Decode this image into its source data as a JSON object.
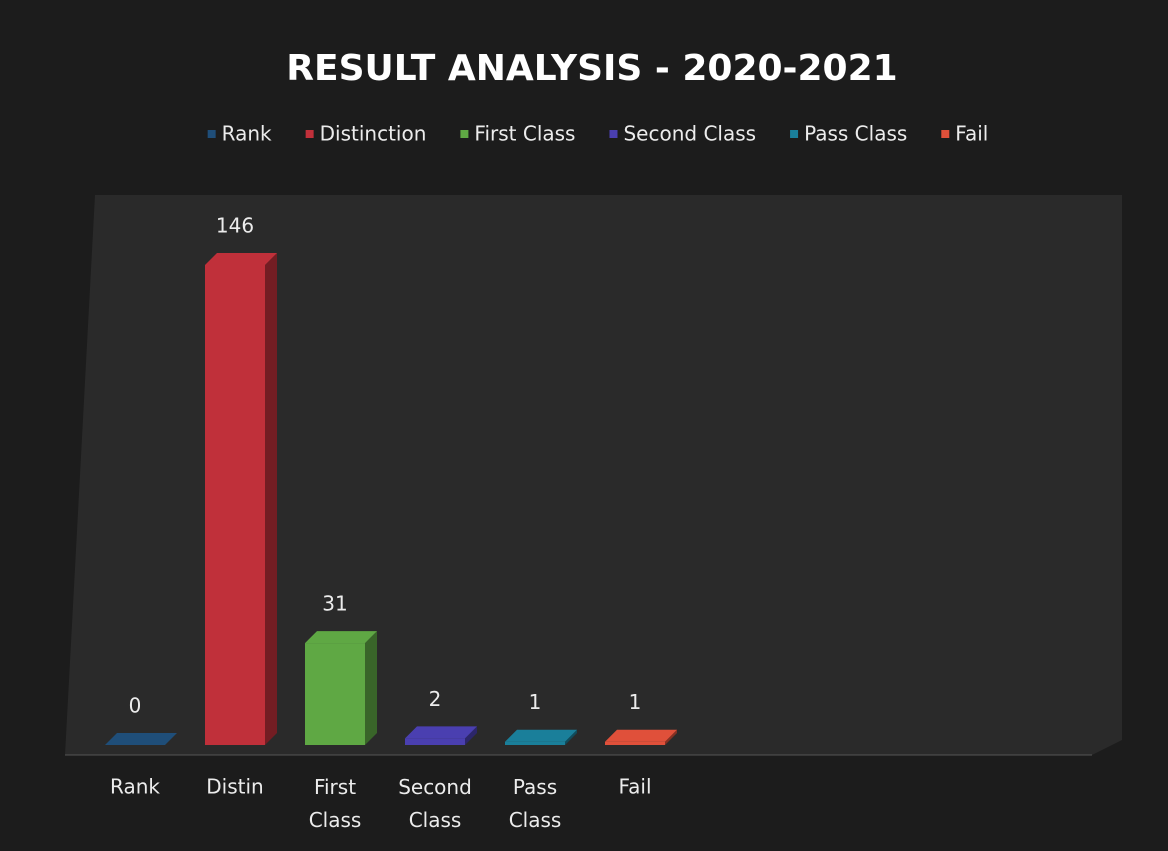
{
  "chart_data": {
    "type": "bar3d",
    "title": "RESULT ANALYSIS - 2020-2021",
    "categories": [
      "Rank",
      "Distin",
      "First Class",
      "Second Class",
      "Pass Class",
      "Fail"
    ],
    "series": [
      {
        "name": "Rank",
        "color": "#1f4e79",
        "values": [
          0,
          null,
          null,
          null,
          null,
          null
        ]
      },
      {
        "name": "Distinction",
        "color": "#c0303a",
        "values": [
          null,
          146,
          null,
          null,
          null,
          null
        ]
      },
      {
        "name": "First Class",
        "color": "#5fa844",
        "values": [
          null,
          null,
          31,
          null,
          null,
          null
        ]
      },
      {
        "name": "Second Class",
        "color": "#4a3fb0",
        "values": [
          null,
          null,
          null,
          2,
          null,
          null
        ]
      },
      {
        "name": "Pass Class",
        "color": "#1a7f9a",
        "values": [
          null,
          null,
          null,
          null,
          1,
          null
        ]
      },
      {
        "name": "Fail",
        "color": "#e0503a",
        "values": [
          null,
          null,
          null,
          null,
          null,
          1
        ]
      }
    ],
    "legend": "top"
  }
}
